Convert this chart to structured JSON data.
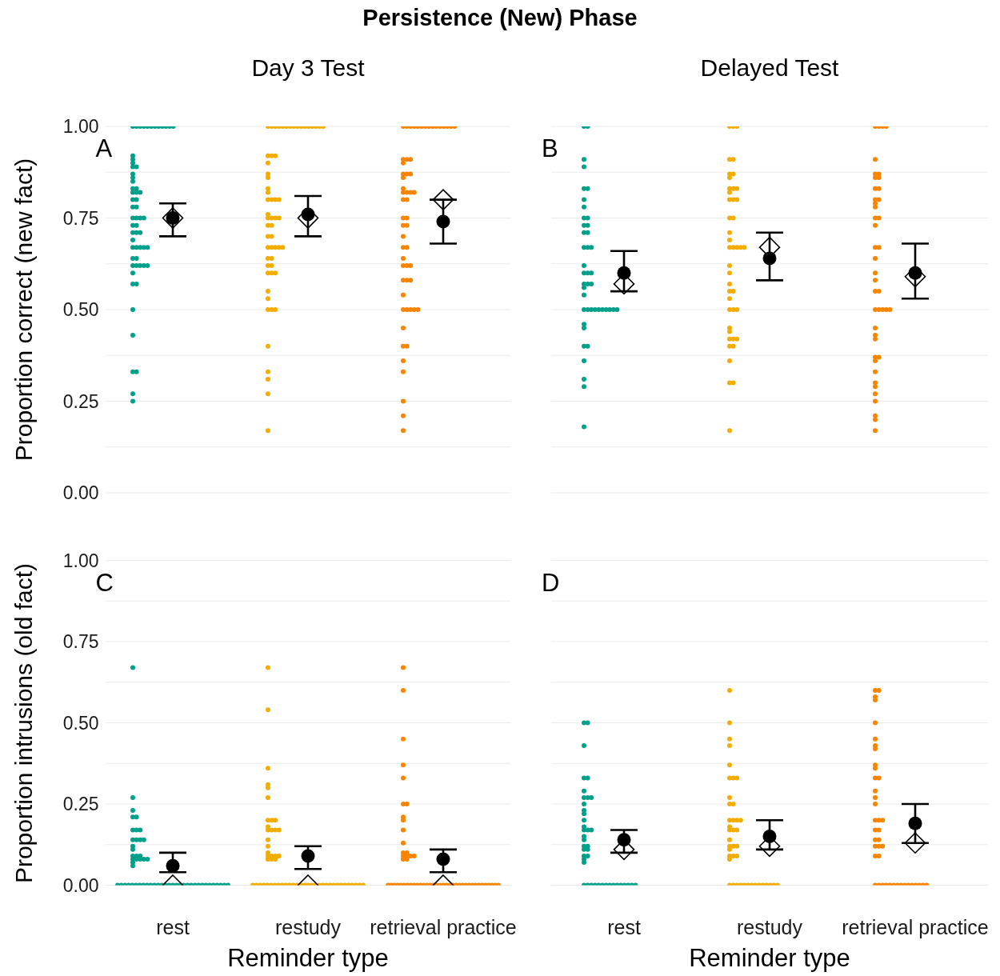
{
  "chart_data": [
    {
      "type": "scatter",
      "title": "Persistence (New) Phase",
      "subtitle": "Day 3 Test",
      "ylabel": "Proportion correct (new fact)",
      "annotations": [
        "A"
      ],
      "categories": [
        "rest",
        "restudy",
        "retrieval practice"
      ],
      "ylim": [
        0,
        1
      ],
      "yticks": [
        {
          "value": 0,
          "label": "0.00"
        },
        {
          "value": 0.125,
          "label": null
        },
        {
          "value": 0.25,
          "label": "0.25"
        },
        {
          "value": 0.375,
          "label": null
        },
        {
          "value": 0.5,
          "label": "0.50"
        },
        {
          "value": 0.625,
          "label": null
        },
        {
          "value": 0.75,
          "label": "0.75"
        },
        {
          "value": 0.875,
          "label": null
        },
        {
          "value": 1,
          "label": "1.00"
        }
      ],
      "grid": "y",
      "tick_labels": "y",
      "series": [
        {
          "color": "#00a08a",
          "marker": "circle",
          "x": [
            "rest",
            "rest",
            "rest",
            "rest",
            "rest",
            "rest",
            "rest",
            "rest",
            "rest",
            "rest",
            "rest",
            "rest",
            "rest",
            "rest",
            "rest",
            "rest",
            "rest",
            "rest",
            "rest",
            "rest",
            "rest",
            "rest",
            "rest",
            "rest",
            "rest",
            "rest",
            "rest",
            "rest",
            "rest",
            "rest",
            "rest",
            "rest",
            "rest",
            "rest",
            "rest",
            "rest",
            "rest",
            "rest",
            "rest",
            "rest",
            "rest",
            "rest",
            "rest",
            "rest",
            "rest",
            "rest",
            "rest",
            "rest",
            "rest",
            "rest",
            "rest",
            "rest",
            "rest",
            "rest",
            "rest",
            "rest",
            "rest",
            "rest",
            "rest",
            "rest"
          ],
          "values": [
            1,
            1,
            1,
            1,
            1,
            1,
            1,
            1,
            1,
            1,
            1,
            1,
            0.92,
            0.91,
            0.9,
            0.89,
            0.89,
            0.87,
            0.86,
            0.85,
            0.83,
            0.83,
            0.82,
            0.82,
            0.82,
            0.8,
            0.8,
            0.78,
            0.78,
            0.75,
            0.75,
            0.75,
            0.75,
            0.73,
            0.73,
            0.71,
            0.71,
            0.71,
            0.69,
            0.67,
            0.67,
            0.67,
            0.67,
            0.67,
            0.64,
            0.64,
            0.62,
            0.62,
            0.62,
            0.62,
            0.62,
            0.6,
            0.57,
            0.57,
            0.5,
            0.43,
            0.33,
            0.33,
            0.27,
            0.25
          ]
        },
        {
          "color": "#f2ad00",
          "marker": "circle",
          "x": [
            "restudy",
            "restudy",
            "restudy",
            "restudy",
            "restudy",
            "restudy",
            "restudy",
            "restudy",
            "restudy",
            "restudy",
            "restudy",
            "restudy",
            "restudy",
            "restudy",
            "restudy",
            "restudy",
            "restudy",
            "restudy",
            "restudy",
            "restudy",
            "restudy",
            "restudy",
            "restudy",
            "restudy",
            "restudy",
            "restudy",
            "restudy",
            "restudy",
            "restudy",
            "restudy",
            "restudy",
            "restudy",
            "restudy",
            "restudy",
            "restudy",
            "restudy",
            "restudy",
            "restudy",
            "restudy",
            "restudy",
            "restudy",
            "restudy",
            "restudy",
            "restudy",
            "restudy",
            "restudy",
            "restudy",
            "restudy",
            "restudy",
            "restudy",
            "restudy",
            "restudy",
            "restudy",
            "restudy",
            "restudy",
            "restudy",
            "restudy",
            "restudy",
            "restudy"
          ],
          "values": [
            1,
            1,
            1,
            1,
            1,
            1,
            1,
            1,
            1,
            1,
            1,
            1,
            1,
            1,
            1,
            1,
            0.92,
            0.92,
            0.92,
            0.9,
            0.87,
            0.86,
            0.83,
            0.82,
            0.8,
            0.8,
            0.8,
            0.8,
            0.76,
            0.75,
            0.75,
            0.75,
            0.75,
            0.73,
            0.73,
            0.7,
            0.7,
            0.67,
            0.67,
            0.67,
            0.67,
            0.67,
            0.64,
            0.64,
            0.62,
            0.62,
            0.6,
            0.6,
            0.6,
            0.55,
            0.53,
            0.5,
            0.5,
            0.5,
            0.4,
            0.33,
            0.31,
            0.27,
            0.17
          ]
        },
        {
          "color": "#f98400",
          "marker": "circle",
          "x": [
            "retrieval practice",
            "retrieval practice",
            "retrieval practice",
            "retrieval practice",
            "retrieval practice",
            "retrieval practice",
            "retrieval practice",
            "retrieval practice",
            "retrieval practice",
            "retrieval practice",
            "retrieval practice",
            "retrieval practice",
            "retrieval practice",
            "retrieval practice",
            "retrieval practice",
            "retrieval practice",
            "retrieval practice",
            "retrieval practice",
            "retrieval practice",
            "retrieval practice",
            "retrieval practice",
            "retrieval practice",
            "retrieval practice",
            "retrieval practice",
            "retrieval practice",
            "retrieval practice",
            "retrieval practice",
            "retrieval practice",
            "retrieval practice",
            "retrieval practice",
            "retrieval practice",
            "retrieval practice",
            "retrieval practice",
            "retrieval practice",
            "retrieval practice",
            "retrieval practice",
            "retrieval practice",
            "retrieval practice",
            "retrieval practice",
            "retrieval practice",
            "retrieval practice",
            "retrieval practice",
            "retrieval practice",
            "retrieval practice",
            "retrieval practice",
            "retrieval practice",
            "retrieval practice",
            "retrieval practice",
            "retrieval practice",
            "retrieval practice",
            "retrieval practice",
            "retrieval practice",
            "retrieval practice",
            "retrieval practice",
            "retrieval practice",
            "retrieval practice",
            "retrieval practice",
            "retrieval practice"
          ],
          "values": [
            1,
            1,
            1,
            1,
            1,
            1,
            1,
            1,
            1,
            1,
            1,
            1,
            1,
            1,
            1,
            0.91,
            0.91,
            0.91,
            0.9,
            0.87,
            0.87,
            0.87,
            0.86,
            0.83,
            0.82,
            0.82,
            0.82,
            0.82,
            0.8,
            0.8,
            0.75,
            0.75,
            0.73,
            0.73,
            0.7,
            0.67,
            0.67,
            0.64,
            0.62,
            0.62,
            0.62,
            0.58,
            0.58,
            0.58,
            0.54,
            0.5,
            0.5,
            0.5,
            0.5,
            0.5,
            0.45,
            0.4,
            0.4,
            0.36,
            0.33,
            0.25,
            0.21,
            0.17
          ]
        },
        {
          "color": "#000000",
          "marker": "diamond",
          "x": [
            "rest",
            "restudy",
            "retrieval practice"
          ],
          "values": [
            0.75,
            0.75,
            0.8
          ]
        },
        {
          "color": "#000000",
          "marker": "circle",
          "x": [
            "rest",
            "restudy",
            "retrieval practice"
          ],
          "values": [
            0.75,
            0.76,
            0.74
          ],
          "errors": [
            [
              0.7,
              0.79
            ],
            [
              0.7,
              0.81
            ],
            [
              0.68,
              0.8
            ]
          ]
        }
      ]
    },
    {
      "type": "scatter",
      "subtitle": "Delayed Test",
      "annotations": [
        "B"
      ],
      "categories": [
        "rest",
        "restudy",
        "retrieval practice"
      ],
      "ylim": [
        0,
        1
      ],
      "yticks": [
        0,
        0.125,
        0.25,
        0.375,
        0.5,
        0.625,
        0.75,
        0.875,
        1
      ],
      "grid": "y",
      "tick_labels": false,
      "series": [
        {
          "color": "#00a08a",
          "marker": "circle",
          "x": [
            "rest",
            "rest",
            "rest",
            "rest",
            "rest",
            "rest",
            "rest",
            "rest",
            "rest",
            "rest",
            "rest",
            "rest",
            "rest",
            "rest",
            "rest",
            "rest",
            "rest",
            "rest",
            "rest",
            "rest",
            "rest",
            "rest",
            "rest",
            "rest",
            "rest",
            "rest",
            "rest",
            "rest",
            "rest",
            "rest",
            "rest",
            "rest",
            "rest",
            "rest",
            "rest",
            "rest",
            "rest",
            "rest",
            "rest",
            "rest",
            "rest",
            "rest",
            "rest",
            "rest"
          ],
          "values": [
            1,
            1,
            0.91,
            0.89,
            0.83,
            0.83,
            0.8,
            0.78,
            0.75,
            0.75,
            0.73,
            0.73,
            0.71,
            0.71,
            0.67,
            0.67,
            0.67,
            0.62,
            0.6,
            0.6,
            0.6,
            0.57,
            0.57,
            0.57,
            0.56,
            0.54,
            0.5,
            0.5,
            0.5,
            0.5,
            0.5,
            0.5,
            0.5,
            0.5,
            0.5,
            0.5,
            0.46,
            0.45,
            0.4,
            0.4,
            0.36,
            0.31,
            0.29,
            0.18
          ]
        },
        {
          "color": "#f2ad00",
          "marker": "circle",
          "x": [
            "restudy",
            "restudy",
            "restudy",
            "restudy",
            "restudy",
            "restudy",
            "restudy",
            "restudy",
            "restudy",
            "restudy",
            "restudy",
            "restudy",
            "restudy",
            "restudy",
            "restudy",
            "restudy",
            "restudy",
            "restudy",
            "restudy",
            "restudy",
            "restudy",
            "restudy",
            "restudy",
            "restudy",
            "restudy",
            "restudy",
            "restudy",
            "restudy",
            "restudy",
            "restudy",
            "restudy",
            "restudy",
            "restudy",
            "restudy",
            "restudy",
            "restudy",
            "restudy",
            "restudy",
            "restudy",
            "restudy",
            "restudy",
            "restudy",
            "restudy",
            "restudy"
          ],
          "values": [
            1,
            1,
            1,
            0.91,
            0.91,
            0.87,
            0.87,
            0.86,
            0.83,
            0.83,
            0.83,
            0.82,
            0.8,
            0.8,
            0.8,
            0.75,
            0.75,
            0.71,
            0.69,
            0.67,
            0.67,
            0.67,
            0.67,
            0.67,
            0.62,
            0.6,
            0.57,
            0.55,
            0.55,
            0.53,
            0.5,
            0.5,
            0.5,
            0.45,
            0.44,
            0.42,
            0.42,
            0.42,
            0.4,
            0.4,
            0.36,
            0.3,
            0.3,
            0.17
          ]
        },
        {
          "color": "#f98400",
          "marker": "circle",
          "x": [
            "retrieval practice",
            "retrieval practice",
            "retrieval practice",
            "retrieval practice",
            "retrieval practice",
            "retrieval practice",
            "retrieval practice",
            "retrieval practice",
            "retrieval practice",
            "retrieval practice",
            "retrieval practice",
            "retrieval practice",
            "retrieval practice",
            "retrieval practice",
            "retrieval practice",
            "retrieval practice",
            "retrieval practice",
            "retrieval practice",
            "retrieval practice",
            "retrieval practice",
            "retrieval practice",
            "retrieval practice",
            "retrieval practice",
            "retrieval practice",
            "retrieval practice",
            "retrieval practice",
            "retrieval practice",
            "retrieval practice",
            "retrieval practice",
            "retrieval practice",
            "retrieval practice",
            "retrieval practice",
            "retrieval practice",
            "retrieval practice",
            "retrieval practice",
            "retrieval practice",
            "retrieval practice",
            "retrieval practice",
            "retrieval practice",
            "retrieval practice",
            "retrieval practice",
            "retrieval practice",
            "retrieval practice",
            "retrieval practice"
          ],
          "values": [
            1,
            1,
            1,
            1,
            0.91,
            0.87,
            0.87,
            0.86,
            0.86,
            0.83,
            0.83,
            0.8,
            0.8,
            0.79,
            0.78,
            0.75,
            0.75,
            0.73,
            0.67,
            0.67,
            0.64,
            0.6,
            0.58,
            0.55,
            0.55,
            0.5,
            0.5,
            0.5,
            0.5,
            0.5,
            0.45,
            0.43,
            0.42,
            0.37,
            0.37,
            0.36,
            0.33,
            0.3,
            0.29,
            0.27,
            0.25,
            0.21,
            0.2,
            0.17
          ]
        },
        {
          "color": "#000000",
          "marker": "diamond",
          "x": [
            "rest",
            "restudy",
            "retrieval practice"
          ],
          "values": [
            0.57,
            0.67,
            0.59
          ]
        },
        {
          "color": "#000000",
          "marker": "circle",
          "x": [
            "rest",
            "restudy",
            "retrieval practice"
          ],
          "values": [
            0.6,
            0.64,
            0.6
          ],
          "errors": [
            [
              0.55,
              0.66
            ],
            [
              0.58,
              0.71
            ],
            [
              0.53,
              0.68
            ]
          ]
        }
      ]
    },
    {
      "type": "scatter",
      "xlabel": "Reminder type",
      "ylabel": "Proportion intrusions (old fact)",
      "annotations": [
        "C"
      ],
      "categories": [
        "rest",
        "restudy",
        "retrieval practice"
      ],
      "ylim": [
        0,
        1
      ],
      "yticks": [
        {
          "value": 0,
          "label": "0.00"
        },
        {
          "value": 0.125,
          "label": null
        },
        {
          "value": 0.25,
          "label": "0.25"
        },
        {
          "value": 0.375,
          "label": null
        },
        {
          "value": 0.5,
          "label": "0.50"
        },
        {
          "value": 0.625,
          "label": null
        },
        {
          "value": 0.75,
          "label": "0.75"
        },
        {
          "value": 0.875,
          "label": null
        },
        {
          "value": 1,
          "label": "1.00"
        }
      ],
      "grid": "y",
      "series": [
        {
          "color": "#00a08a",
          "marker": "circle",
          "x": [
            "rest",
            "rest",
            "rest",
            "rest",
            "rest",
            "rest",
            "rest",
            "rest",
            "rest",
            "rest",
            "rest",
            "rest",
            "rest",
            "rest",
            "rest",
            "rest",
            "rest",
            "rest",
            "rest",
            "rest",
            "rest",
            "rest",
            "rest",
            "rest",
            "rest",
            "rest",
            "rest",
            "rest",
            "rest",
            "rest",
            "rest",
            "rest",
            "rest",
            "rest",
            "rest",
            "rest",
            "rest",
            "rest",
            "rest",
            "rest",
            "rest",
            "rest",
            "rest",
            "rest",
            "rest",
            "rest",
            "rest",
            "rest",
            "rest",
            "rest",
            "rest",
            "rest",
            "rest",
            "rest",
            "rest"
          ],
          "values": [
            0.67,
            0.27,
            0.23,
            0.21,
            0.21,
            0.17,
            0.17,
            0.17,
            0.14,
            0.14,
            0.14,
            0.14,
            0.12,
            0.11,
            0.09,
            0.09,
            0.09,
            0.08,
            0.08,
            0.08,
            0.08,
            0.08,
            0.07,
            0.06,
            0,
            0,
            0,
            0,
            0,
            0,
            0,
            0,
            0,
            0,
            0,
            0,
            0,
            0,
            0,
            0,
            0,
            0,
            0,
            0,
            0,
            0,
            0,
            0,
            0,
            0,
            0,
            0,
            0,
            0,
            0
          ]
        },
        {
          "color": "#f2ad00",
          "marker": "circle",
          "x": [
            "restudy",
            "restudy",
            "restudy",
            "restudy",
            "restudy",
            "restudy",
            "restudy",
            "restudy",
            "restudy",
            "restudy",
            "restudy",
            "restudy",
            "restudy",
            "restudy",
            "restudy",
            "restudy",
            "restudy",
            "restudy",
            "restudy",
            "restudy",
            "restudy",
            "restudy",
            "restudy",
            "restudy",
            "restudy",
            "restudy",
            "restudy",
            "restudy",
            "restudy",
            "restudy",
            "restudy",
            "restudy",
            "restudy",
            "restudy",
            "restudy",
            "restudy",
            "restudy",
            "restudy",
            "restudy",
            "restudy",
            "restudy",
            "restudy",
            "restudy",
            "restudy",
            "restudy",
            "restudy",
            "restudy",
            "restudy",
            "restudy",
            "restudy",
            "restudy",
            "restudy",
            "restudy",
            "restudy",
            "restudy"
          ],
          "values": [
            0.67,
            0.54,
            0.36,
            0.31,
            0.3,
            0.27,
            0.2,
            0.2,
            0.2,
            0.18,
            0.17,
            0.17,
            0.17,
            0.17,
            0.14,
            0.12,
            0.1,
            0.09,
            0.09,
            0.09,
            0.09,
            0.08,
            0.08,
            0.08,
            0,
            0,
            0,
            0,
            0,
            0,
            0,
            0,
            0,
            0,
            0,
            0,
            0,
            0,
            0,
            0,
            0,
            0,
            0,
            0,
            0,
            0,
            0,
            0,
            0,
            0,
            0,
            0,
            0,
            0,
            0
          ]
        },
        {
          "color": "#f98400",
          "marker": "circle",
          "x": [
            "retrieval practice",
            "retrieval practice",
            "retrieval practice",
            "retrieval practice",
            "retrieval practice",
            "retrieval practice",
            "retrieval practice",
            "retrieval practice",
            "retrieval practice",
            "retrieval practice",
            "retrieval practice",
            "retrieval practice",
            "retrieval practice",
            "retrieval practice",
            "retrieval practice",
            "retrieval practice",
            "retrieval practice",
            "retrieval practice",
            "retrieval practice",
            "retrieval practice",
            "retrieval practice",
            "retrieval practice",
            "retrieval practice",
            "retrieval practice",
            "retrieval practice",
            "retrieval practice",
            "retrieval practice",
            "retrieval practice",
            "retrieval practice",
            "retrieval practice",
            "retrieval practice",
            "retrieval practice",
            "retrieval practice",
            "retrieval practice",
            "retrieval practice",
            "retrieval practice",
            "retrieval practice",
            "retrieval practice",
            "retrieval practice",
            "retrieval practice",
            "retrieval practice",
            "retrieval practice",
            "retrieval practice",
            "retrieval practice",
            "retrieval practice",
            "retrieval practice",
            "retrieval practice",
            "retrieval practice",
            "retrieval practice",
            "retrieval practice",
            "retrieval practice",
            "retrieval practice",
            "retrieval practice",
            "retrieval practice"
          ],
          "values": [
            0.67,
            0.6,
            0.45,
            0.37,
            0.33,
            0.25,
            0.25,
            0.21,
            0.2,
            0.17,
            0.13,
            0.1,
            0.1,
            0.09,
            0.09,
            0.09,
            0.09,
            0.08,
            0.08,
            0,
            0,
            0,
            0,
            0,
            0,
            0,
            0,
            0,
            0,
            0,
            0,
            0,
            0,
            0,
            0,
            0,
            0,
            0,
            0,
            0,
            0,
            0,
            0,
            0,
            0,
            0,
            0,
            0,
            0,
            0,
            0,
            0,
            0,
            0
          ]
        },
        {
          "color": "#000000",
          "marker": "diamond",
          "x": [
            "rest",
            "restudy",
            "retrieval practice"
          ],
          "values": [
            0,
            0,
            0
          ]
        },
        {
          "color": "#000000",
          "marker": "circle",
          "x": [
            "rest",
            "restudy",
            "retrieval practice"
          ],
          "values": [
            0.06,
            0.09,
            0.08
          ],
          "errors": [
            [
              0.04,
              0.1
            ],
            [
              0.05,
              0.12
            ],
            [
              0.04,
              0.11
            ]
          ]
        }
      ]
    },
    {
      "type": "scatter",
      "xlabel": "Reminder type",
      "annotations": [
        "D"
      ],
      "categories": [
        "rest",
        "restudy",
        "retrieval practice"
      ],
      "ylim": [
        0,
        1
      ],
      "yticks": [
        0,
        0.125,
        0.25,
        0.375,
        0.5,
        0.625,
        0.75,
        0.875,
        1
      ],
      "grid": "y",
      "tick_labels": "x",
      "series": [
        {
          "color": "#00a08a",
          "marker": "circle",
          "x": [
            "rest",
            "rest",
            "rest",
            "rest",
            "rest",
            "rest",
            "rest",
            "rest",
            "rest",
            "rest",
            "rest",
            "rest",
            "rest",
            "rest",
            "rest",
            "rest",
            "rest",
            "rest",
            "rest",
            "rest",
            "rest",
            "rest",
            "rest",
            "rest",
            "rest",
            "rest",
            "rest",
            "rest",
            "rest",
            "rest",
            "rest",
            "rest",
            "rest",
            "rest",
            "rest",
            "rest",
            "rest",
            "rest",
            "rest",
            "rest",
            "rest",
            "rest"
          ],
          "values": [
            0.5,
            0.5,
            0.43,
            0.33,
            0.33,
            0.29,
            0.27,
            0.27,
            0.27,
            0.25,
            0.23,
            0.22,
            0.2,
            0.18,
            0.17,
            0.17,
            0.17,
            0.15,
            0.14,
            0.12,
            0.12,
            0.11,
            0.11,
            0.09,
            0.09,
            0.08,
            0.07,
            0,
            0,
            0,
            0,
            0,
            0,
            0,
            0,
            0,
            0,
            0,
            0,
            0,
            0,
            0
          ]
        },
        {
          "color": "#f2ad00",
          "marker": "circle",
          "x": [
            "restudy",
            "restudy",
            "restudy",
            "restudy",
            "restudy",
            "restudy",
            "restudy",
            "restudy",
            "restudy",
            "restudy",
            "restudy",
            "restudy",
            "restudy",
            "restudy",
            "restudy",
            "restudy",
            "restudy",
            "restudy",
            "restudy",
            "restudy",
            "restudy",
            "restudy",
            "restudy",
            "restudy",
            "restudy",
            "restudy",
            "restudy",
            "restudy",
            "restudy",
            "restudy",
            "restudy",
            "restudy",
            "restudy",
            "restudy",
            "restudy",
            "restudy",
            "restudy",
            "restudy",
            "restudy",
            "restudy",
            "restudy",
            "restudy"
          ],
          "values": [
            0.6,
            0.5,
            0.45,
            0.43,
            0.37,
            0.33,
            0.33,
            0.33,
            0.27,
            0.25,
            0.25,
            0.2,
            0.2,
            0.2,
            0.2,
            0.18,
            0.17,
            0.17,
            0.17,
            0.14,
            0.12,
            0.12,
            0.12,
            0.11,
            0.09,
            0.09,
            0.09,
            0.08,
            0,
            0,
            0,
            0,
            0,
            0,
            0,
            0,
            0,
            0,
            0,
            0,
            0,
            0
          ]
        },
        {
          "color": "#f98400",
          "marker": "circle",
          "x": [
            "retrieval practice",
            "retrieval practice",
            "retrieval practice",
            "retrieval practice",
            "retrieval practice",
            "retrieval practice",
            "retrieval practice",
            "retrieval practice",
            "retrieval practice",
            "retrieval practice",
            "retrieval practice",
            "retrieval practice",
            "retrieval practice",
            "retrieval practice",
            "retrieval practice",
            "retrieval practice",
            "retrieval practice",
            "retrieval practice",
            "retrieval practice",
            "retrieval practice",
            "retrieval practice",
            "retrieval practice",
            "retrieval practice",
            "retrieval practice",
            "retrieval practice",
            "retrieval practice",
            "retrieval practice",
            "retrieval practice",
            "retrieval practice",
            "retrieval practice",
            "retrieval practice",
            "retrieval practice",
            "retrieval practice",
            "retrieval practice",
            "retrieval practice",
            "retrieval practice",
            "retrieval practice",
            "retrieval practice",
            "retrieval practice",
            "retrieval practice",
            "retrieval practice",
            "retrieval practice"
          ],
          "values": [
            0.6,
            0.6,
            0.58,
            0.57,
            0.5,
            0.45,
            0.43,
            0.42,
            0.37,
            0.36,
            0.33,
            0.33,
            0.29,
            0.27,
            0.25,
            0.2,
            0.2,
            0.2,
            0.17,
            0.17,
            0.14,
            0.14,
            0.12,
            0.12,
            0.12,
            0.09,
            0.09,
            0,
            0,
            0,
            0,
            0,
            0,
            0,
            0,
            0,
            0,
            0,
            0,
            0,
            0,
            0
          ]
        },
        {
          "color": "#000000",
          "marker": "diamond",
          "x": [
            "rest",
            "restudy",
            "retrieval practice"
          ],
          "values": [
            0.11,
            0.12,
            0.13
          ]
        },
        {
          "color": "#000000",
          "marker": "circle",
          "x": [
            "rest",
            "restudy",
            "retrieval practice"
          ],
          "values": [
            0.14,
            0.15,
            0.19
          ],
          "errors": [
            [
              0.1,
              0.17
            ],
            [
              0.11,
              0.2
            ],
            [
              0.13,
              0.25
            ]
          ]
        }
      ]
    }
  ]
}
